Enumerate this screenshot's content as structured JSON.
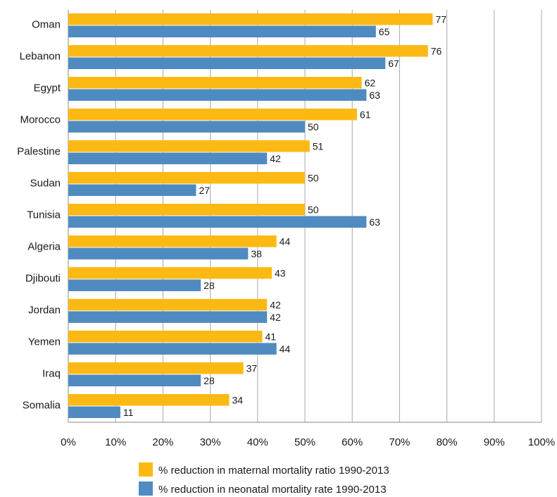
{
  "chart_data": {
    "type": "bar",
    "orientation": "horizontal",
    "title": "",
    "xlabel": "",
    "ylabel": "",
    "xlim": [
      0,
      100
    ],
    "x_tick_labels": [
      "0%",
      "10%",
      "20%",
      "30%",
      "40%",
      "50%",
      "60%",
      "70%",
      "80%",
      "90%",
      "100%"
    ],
    "grid": "vertical",
    "legend_position": "bottom",
    "categories": [
      "Oman",
      "Lebanon",
      "Egypt",
      "Morocco",
      "Palestine",
      "Sudan",
      "Tunisia",
      "Algeria",
      "Djibouti",
      "Jordan",
      "Yemen",
      "Iraq",
      "Somalia"
    ],
    "series": [
      {
        "name": "% reduction in maternal mortality ratio 1990-2013",
        "color": "#FDB913",
        "values": [
          77,
          76,
          62,
          61,
          51,
          50,
          50,
          44,
          43,
          42,
          41,
          37,
          34
        ]
      },
      {
        "name": "% reduction in neonatal mortality rate 1990-2013",
        "color": "#4F8BC1",
        "values": [
          65,
          67,
          63,
          50,
          42,
          27,
          63,
          38,
          28,
          42,
          44,
          28,
          11
        ]
      }
    ]
  }
}
